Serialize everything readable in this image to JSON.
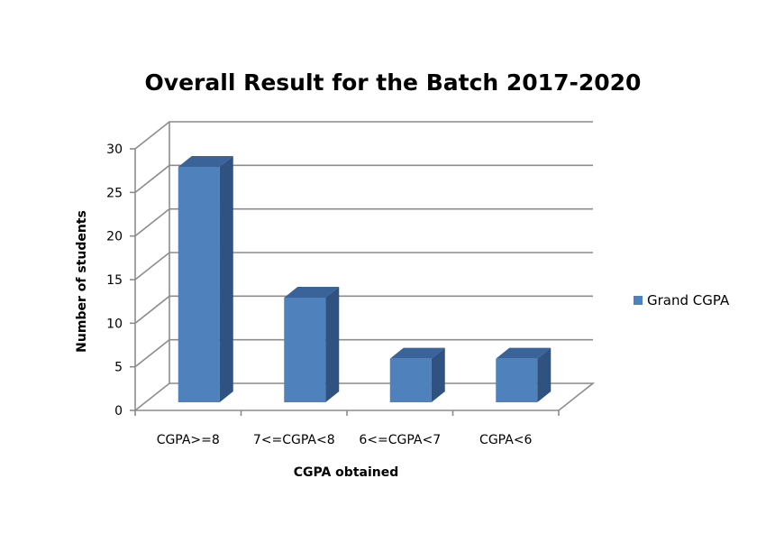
{
  "chart_data": {
    "type": "bar",
    "title": "Overall Result for the Batch 2017-2020",
    "xlabel": "CGPA obtained",
    "ylabel": "Number of students",
    "categories": [
      "CGPA>=8",
      "7<=CGPA<8",
      "6<=CGPA<7",
      "CGPA<6"
    ],
    "series": [
      {
        "name": "Grand CGPA",
        "values": [
          27,
          12,
          5,
          5
        ]
      }
    ],
    "ylim": [
      0,
      30
    ],
    "yticks": [
      0,
      5,
      10,
      15,
      20,
      25,
      30
    ],
    "grid": true,
    "three_d": true,
    "legend_position": "right",
    "colors": {
      "bar_front": "#4F81BD",
      "bar_side": "#2F5280",
      "bar_top": "#3A6499",
      "grid": "#8c8c8c"
    }
  }
}
